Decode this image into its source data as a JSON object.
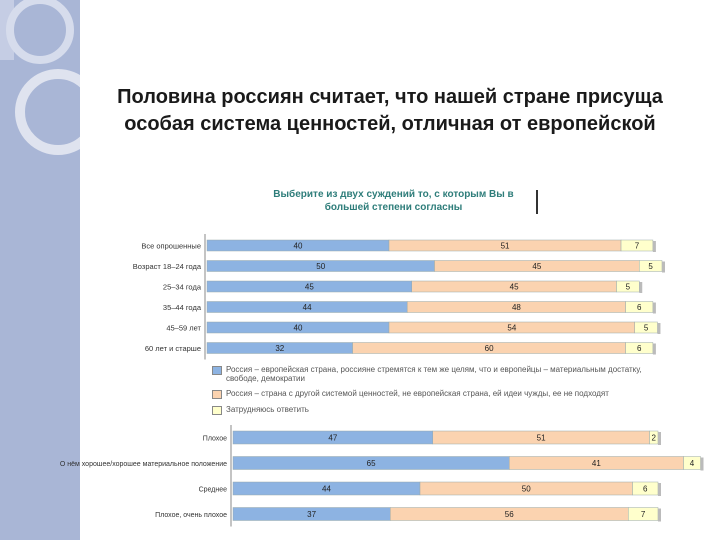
{
  "slide": {
    "title": "Половина россиян считает, что нашей стране присуща особая система ценностей, отличная от европейской"
  },
  "chart_data": [
    {
      "type": "bar",
      "stacked": true,
      "orientation": "horizontal",
      "title": "Выберите из двух суждений то, с которым Вы в большей степени согласны",
      "categories": [
        "Все опрошенные",
        "Возраст 18–24 года",
        "25–34 года",
        "35–44 года",
        "45–59 лет",
        "60 лет и старше"
      ],
      "series": [
        {
          "name": "Россия – европейская страна, россияне стремятся к тем же целям, что и европейцы – материальным достатку, свободе, демократии",
          "values": [
            40,
            50,
            45,
            44,
            40,
            32
          ],
          "color": "#8db3e2"
        },
        {
          "name": "Россия – страна с другой системой ценностей, не европейская страна, ей идеи чужды, ее не подходят",
          "values": [
            51,
            45,
            45,
            48,
            54,
            60
          ],
          "color": "#fbd3b0"
        },
        {
          "name": "Затрудняюсь ответить",
          "values": [
            7,
            5,
            5,
            6,
            5,
            6
          ],
          "color": "#ffffcc"
        }
      ]
    },
    {
      "type": "bar",
      "stacked": true,
      "orientation": "horizontal",
      "categories": [
        "Плохое",
        "О нём хорошее/хорошее материальное положение",
        "Среднее",
        "Плохое, очень плохое"
      ],
      "series": [
        {
          "values": [
            47,
            65,
            44,
            37
          ],
          "color": "#8db3e2"
        },
        {
          "values": [
            51,
            41,
            50,
            56
          ],
          "color": "#fbd3b0"
        },
        {
          "values": [
            2,
            4,
            6,
            7
          ],
          "color": "#ffffcc"
        }
      ]
    }
  ]
}
